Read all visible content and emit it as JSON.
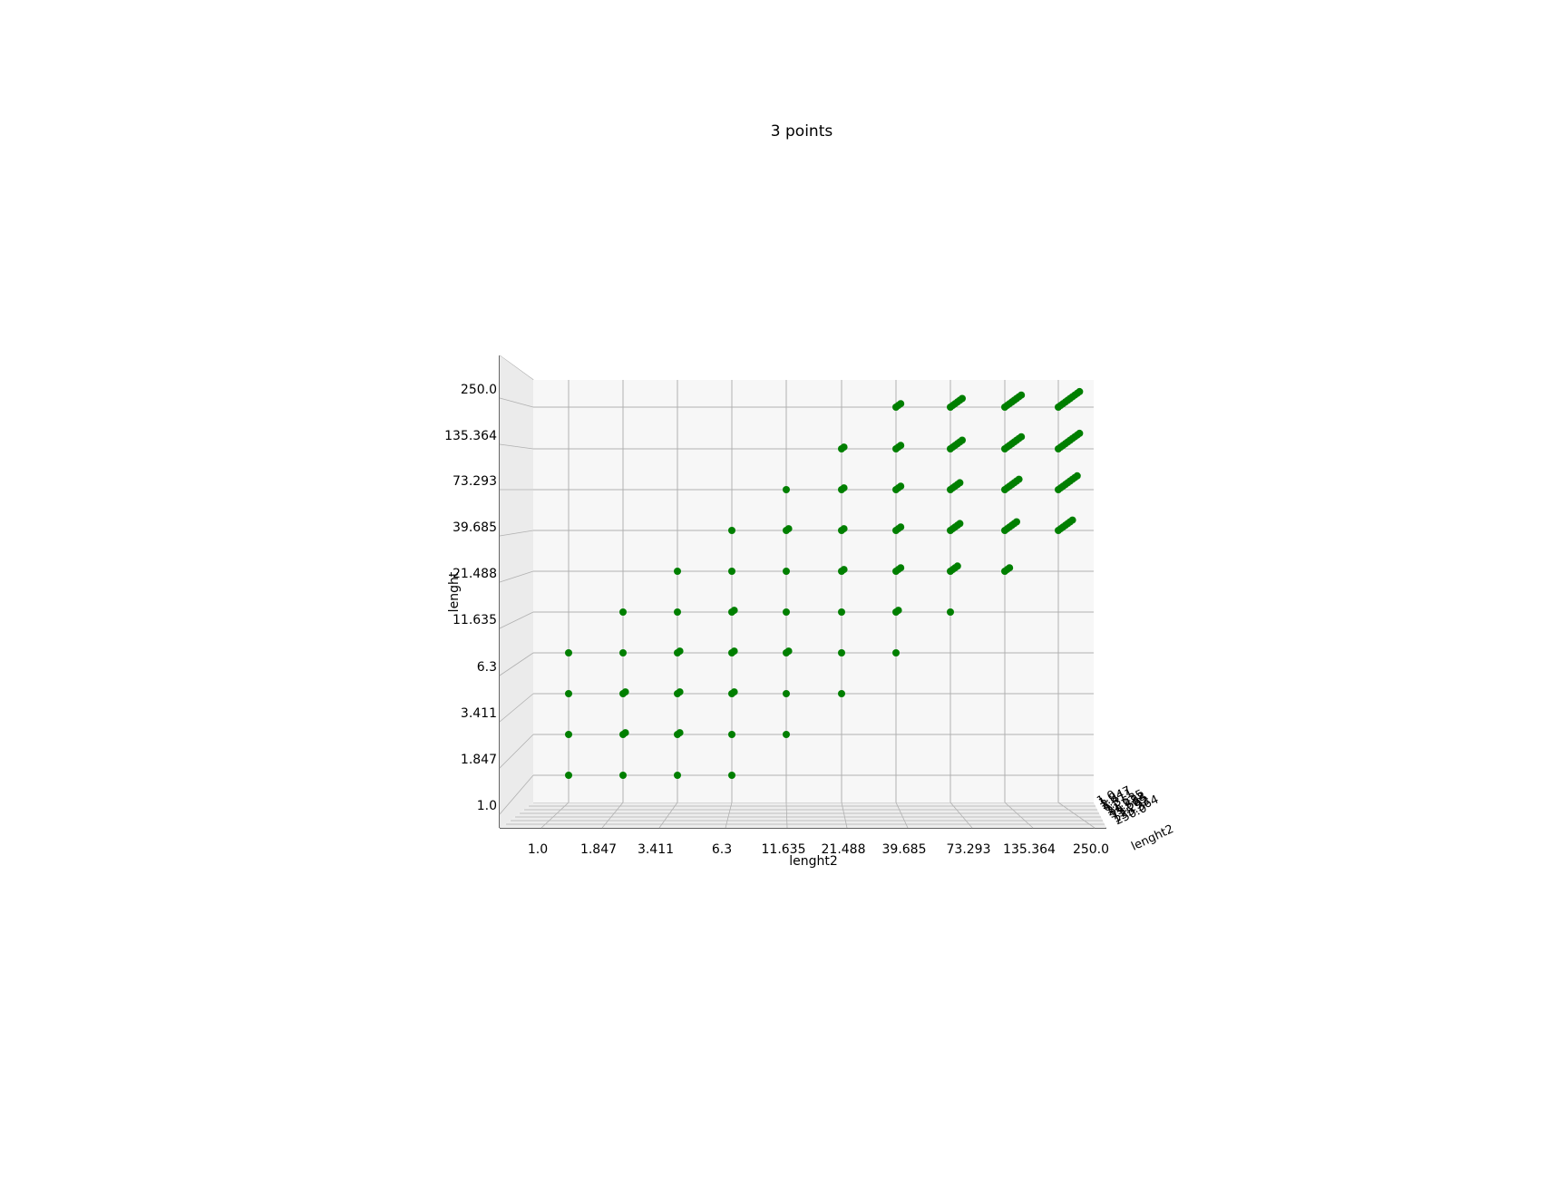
{
  "chart_data": {
    "type": "scatter",
    "projection": "3d",
    "title": "3 points",
    "xlabel": "lenght2",
    "ylabel": "lenght",
    "zlabel": "lenght2",
    "x_ticks": [
      "1.0",
      "1.847",
      "3.411",
      "6.3",
      "11.635",
      "21.488",
      "39.685",
      "73.293",
      "135.364",
      "250.0"
    ],
    "y_ticks": [
      "1.0",
      "1.847",
      "3.411",
      "6.3",
      "11.635",
      "21.488",
      "39.685",
      "73.293",
      "135.364",
      "250.0"
    ],
    "scale": "log",
    "grid": true,
    "marker_color": "#007f00",
    "pane_color": "#f7f7f7",
    "grid_color": "#b0b0b0",
    "series": [
      {
        "points": [
          [
            "1.0",
            "1.0",
            1
          ],
          [
            "1.847",
            "1.0",
            1
          ],
          [
            "3.411",
            "1.0",
            1
          ],
          [
            "6.3",
            "1.0",
            1
          ],
          [
            "1.0",
            "1.847",
            1
          ],
          [
            "1.847",
            "1.847",
            2
          ],
          [
            "3.411",
            "1.847",
            2
          ],
          [
            "6.3",
            "1.847",
            1
          ],
          [
            "11.635",
            "1.847",
            1
          ],
          [
            "1.0",
            "3.411",
            1
          ],
          [
            "1.847",
            "3.411",
            2
          ],
          [
            "3.411",
            "3.411",
            2
          ],
          [
            "6.3",
            "3.411",
            2
          ],
          [
            "11.635",
            "3.411",
            1
          ],
          [
            "21.488",
            "3.411",
            1
          ],
          [
            "1.0",
            "6.3",
            1
          ],
          [
            "1.847",
            "6.3",
            1
          ],
          [
            "3.411",
            "6.3",
            2
          ],
          [
            "6.3",
            "6.3",
            2
          ],
          [
            "11.635",
            "6.3",
            2
          ],
          [
            "21.488",
            "6.3",
            1
          ],
          [
            "39.685",
            "6.3",
            1
          ],
          [
            "1.847",
            "11.635",
            1
          ],
          [
            "3.411",
            "11.635",
            1
          ],
          [
            "6.3",
            "11.635",
            2
          ],
          [
            "11.635",
            "11.635",
            1
          ],
          [
            "21.488",
            "11.635",
            1
          ],
          [
            "39.685",
            "11.635",
            2
          ],
          [
            "73.293",
            "11.635",
            1
          ],
          [
            "3.411",
            "21.488",
            1
          ],
          [
            "6.3",
            "21.488",
            1
          ],
          [
            "11.635",
            "21.488",
            1
          ],
          [
            "21.488",
            "21.488",
            2
          ],
          [
            "39.685",
            "21.488",
            3
          ],
          [
            "73.293",
            "21.488",
            4
          ],
          [
            "135.364",
            "21.488",
            3
          ],
          [
            "6.3",
            "39.685",
            1
          ],
          [
            "11.635",
            "39.685",
            2
          ],
          [
            "21.488",
            "39.685",
            2
          ],
          [
            "39.685",
            "39.685",
            3
          ],
          [
            "73.293",
            "39.685",
            5
          ],
          [
            "135.364",
            "39.685",
            6
          ],
          [
            "250.0",
            "39.685",
            7
          ],
          [
            "11.635",
            "73.293",
            1
          ],
          [
            "21.488",
            "73.293",
            2
          ],
          [
            "39.685",
            "73.293",
            3
          ],
          [
            "73.293",
            "73.293",
            5
          ],
          [
            "135.364",
            "73.293",
            7
          ],
          [
            "250.0",
            "73.293",
            9
          ],
          [
            "21.488",
            "135.364",
            2
          ],
          [
            "39.685",
            "135.364",
            3
          ],
          [
            "73.293",
            "135.364",
            6
          ],
          [
            "135.364",
            "135.364",
            8
          ],
          [
            "250.0",
            "135.364",
            10
          ],
          [
            "39.685",
            "250.0",
            3
          ],
          [
            "73.293",
            "250.0",
            6
          ],
          [
            "135.364",
            "250.0",
            8
          ],
          [
            "250.0",
            "250.0",
            10
          ]
        ]
      }
    ]
  }
}
